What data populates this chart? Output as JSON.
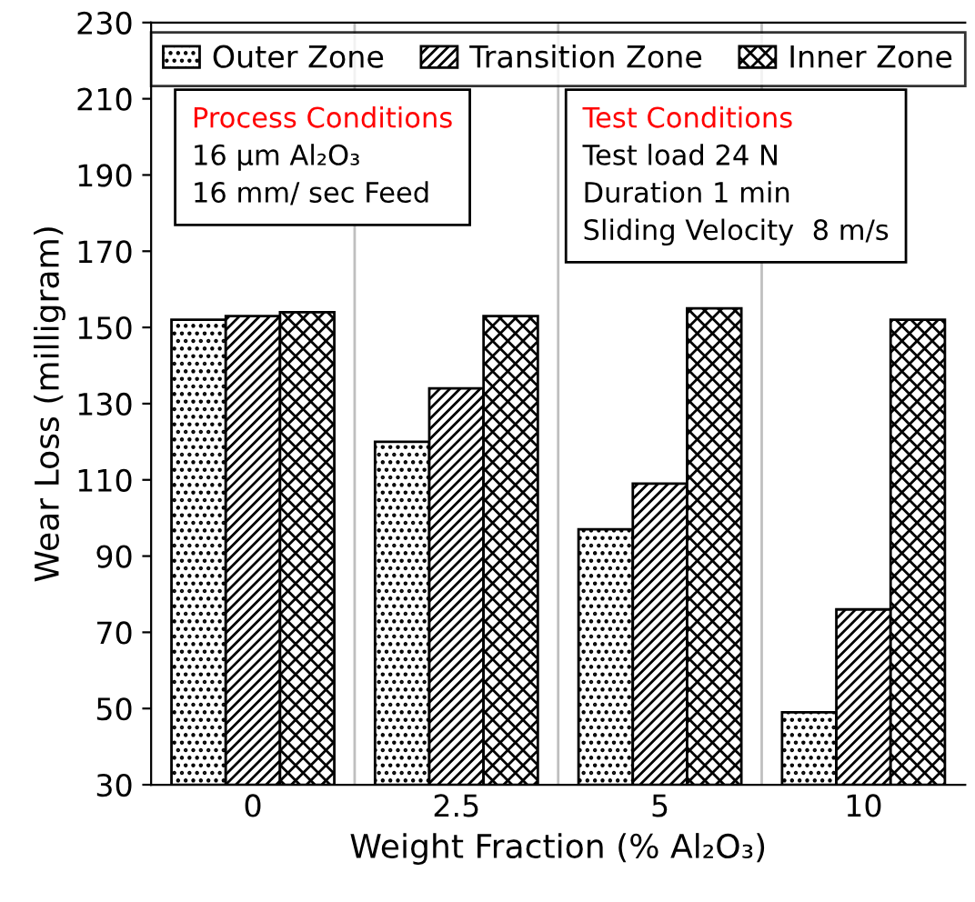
{
  "chart_data": {
    "type": "bar",
    "xlabel": "Weight Fraction (% Al₂O₃)",
    "ylabel": "Wear Loss (milligram)",
    "categories": [
      "0",
      "2.5",
      "5",
      "10"
    ],
    "series": [
      {
        "name": "Outer Zone",
        "color": "#000000",
        "values": [
          152,
          120,
          97,
          49
        ]
      },
      {
        "name": "Transition Zone",
        "color": "#000000",
        "values": [
          153,
          134,
          109,
          76
        ]
      },
      {
        "name": "Inner Zone",
        "color": "#000000",
        "values": [
          154,
          153,
          155,
          152
        ]
      }
    ],
    "ylim": [
      30,
      230
    ],
    "yticks": [
      30,
      50,
      70,
      90,
      110,
      130,
      150,
      170,
      190,
      210,
      230
    ],
    "grid": "x",
    "legend": "top",
    "annotations": [
      "Process Conditions\n16 µm Al₂O₃\n16 mm/ sec Feed",
      "Test Conditions\nTest load 24 N\nDuration 1 min\nSliding Velocity  8 m/s"
    ]
  }
}
